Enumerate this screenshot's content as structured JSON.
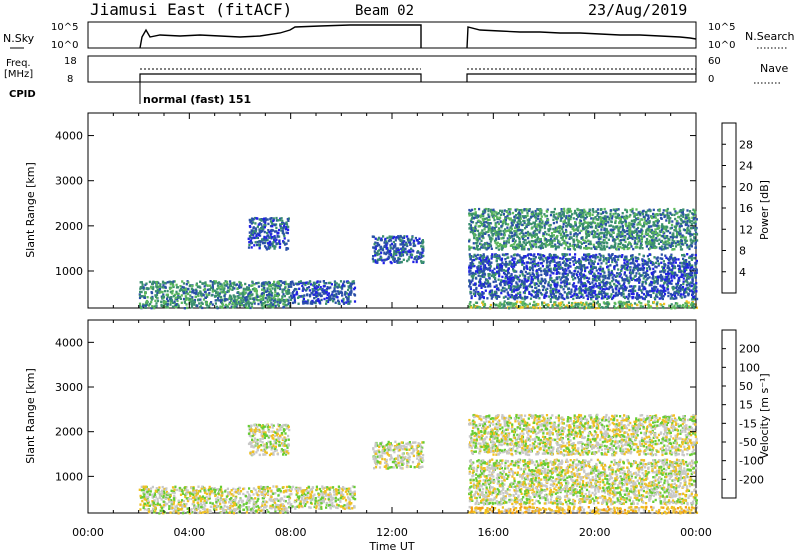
{
  "header": {
    "radar": "Jiamusi East (fitACF)",
    "beam": "Beam 02",
    "date": "23/Aug/2019"
  },
  "top_panels": {
    "nsky_label": "N.Sky",
    "nsky_ticks": [
      "10^5",
      "10^0"
    ],
    "nsearch_label": "N.Search",
    "nsearch_ticks": [
      "10^5",
      "10^0"
    ],
    "freq_label_1": "Freq.",
    "freq_label_2": "[MHz]",
    "freq_ticks": [
      "18",
      "8"
    ],
    "nave_label": "Nave",
    "nave_ticks": [
      "60",
      "0"
    ],
    "cpid_label": "CPID",
    "cpid_text": "normal (fast) 151"
  },
  "chart_data": [
    {
      "type": "heatmap",
      "title": "",
      "xlabel": "",
      "ylabel": "Slant Range [km]",
      "yticks": [
        "1000",
        "2000",
        "3000",
        "4000"
      ],
      "ylim": [
        180,
        4500
      ],
      "colorbar_label": "Power [dB]",
      "colorbar_ticks": [
        "4",
        "8",
        "12",
        "16",
        "20",
        "24",
        "28"
      ],
      "colors": [
        "#1f1fe6",
        "#2a4fa8",
        "#3a8f6e",
        "#5cb85c",
        "#f0c020",
        "#f39c12",
        "#e66a10",
        "#e01010"
      ],
      "echo_regions": [
        {
          "t0": 2.0,
          "t1": 8.0,
          "r0": 200,
          "r1": 800,
          "level": 2
        },
        {
          "t0": 6.3,
          "t1": 7.9,
          "r0": 1500,
          "r1": 2200,
          "level": 1
        },
        {
          "t0": 8.0,
          "t1": 10.5,
          "r0": 300,
          "r1": 800,
          "level": 1
        },
        {
          "t0": 11.2,
          "t1": 13.2,
          "r0": 1200,
          "r1": 1800,
          "level": 1
        },
        {
          "t0": 15.0,
          "t1": 24.0,
          "r0": 1500,
          "r1": 2400,
          "level": 2
        },
        {
          "t0": 15.0,
          "t1": 24.0,
          "r0": 400,
          "r1": 1400,
          "level": 1
        },
        {
          "t0": 15.0,
          "t1": 24.0,
          "r0": 200,
          "r1": 350,
          "level": 3
        }
      ]
    },
    {
      "type": "heatmap",
      "title": "",
      "xlabel": "Time UT",
      "ylabel": "Slant Range [km]",
      "yticks": [
        "1000",
        "2000",
        "3000",
        "4000"
      ],
      "ylim": [
        180,
        4500
      ],
      "xticks": [
        "00:00",
        "04:00",
        "08:00",
        "12:00",
        "16:00",
        "20:00",
        "00:00"
      ],
      "xlim": [
        0,
        24
      ],
      "colorbar_label": "Velocity [m s⁻¹]",
      "colorbar_ticks": [
        "200",
        "100",
        "50",
        "15",
        "-15",
        "-50",
        "-100",
        "-200"
      ],
      "colors": [
        "#1f1fe6",
        "#2a4fa8",
        "#3a8f6e",
        "#66cc33",
        "#c8c8c8",
        "#f0c020",
        "#f39c12",
        "#e66a10",
        "#e01010"
      ],
      "echo_regions": [
        {
          "t0": 2.0,
          "t1": 8.0,
          "r0": 200,
          "r1": 800,
          "level": 4
        },
        {
          "t0": 6.3,
          "t1": 7.9,
          "r0": 1500,
          "r1": 2200,
          "level": 4
        },
        {
          "t0": 8.0,
          "t1": 10.5,
          "r0": 300,
          "r1": 800,
          "level": 4
        },
        {
          "t0": 11.2,
          "t1": 13.2,
          "r0": 1200,
          "r1": 1800,
          "level": 4
        },
        {
          "t0": 15.0,
          "t1": 24.0,
          "r0": 1500,
          "r1": 2400,
          "level": 4
        },
        {
          "t0": 15.0,
          "t1": 24.0,
          "r0": 400,
          "r1": 1400,
          "level": 4
        },
        {
          "t0": 15.0,
          "t1": 24.0,
          "r0": 200,
          "r1": 350,
          "level": 5
        }
      ]
    }
  ]
}
